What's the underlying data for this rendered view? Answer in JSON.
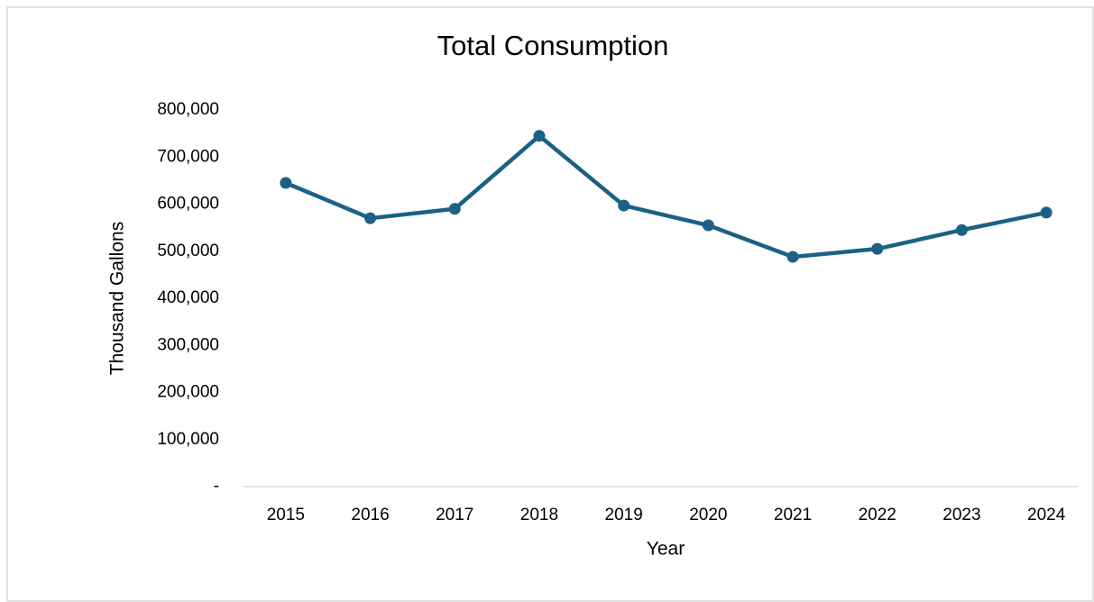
{
  "chart_data": {
    "type": "line",
    "title": "Total Consumption",
    "x_label": "Year",
    "y_label": "Thousand Gallons",
    "categories": [
      "2015",
      "2016",
      "2017",
      "2018",
      "2019",
      "2020",
      "2021",
      "2022",
      "2023",
      "2024"
    ],
    "values": [
      645000,
      570000,
      590000,
      745000,
      597000,
      555000,
      488000,
      505000,
      545000,
      582000
    ],
    "color": "#1b6185",
    "ylim": [
      0,
      800000
    ],
    "yticks": [
      {
        "value": 0,
        "label": "-"
      },
      {
        "value": 100000,
        "label": "100,000"
      },
      {
        "value": 200000,
        "label": "200,000"
      },
      {
        "value": 300000,
        "label": "300,000"
      },
      {
        "value": 400000,
        "label": "400,000"
      },
      {
        "value": 500000,
        "label": "500,000"
      },
      {
        "value": 600000,
        "label": "600,000"
      },
      {
        "value": 700000,
        "label": "700,000"
      },
      {
        "value": 800000,
        "label": "800,000"
      }
    ],
    "grid": false
  }
}
